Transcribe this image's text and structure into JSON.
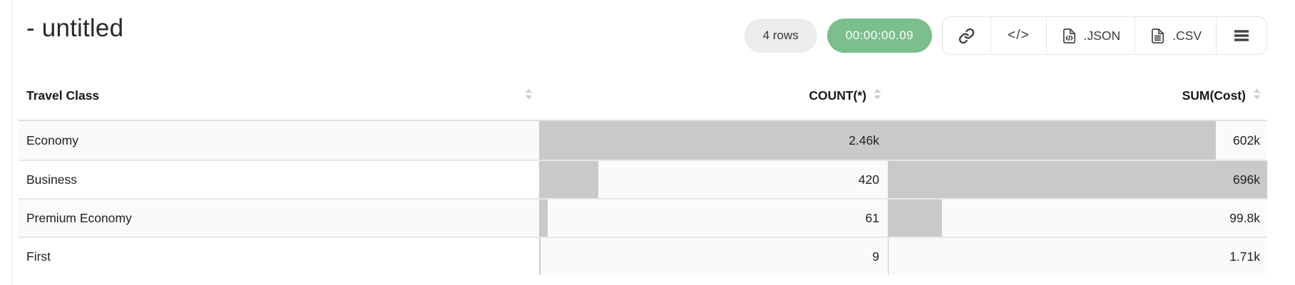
{
  "header": {
    "title": "- untitled",
    "row_count": "4 rows",
    "timer": "00:00:00.09",
    "code_icon_label": "</>",
    "json_label": ".JSON",
    "csv_label": ".CSV"
  },
  "colors": {
    "timer_bg": "#7cbe8e",
    "bar": "#c9c9c9",
    "bar_track": "#fafafa",
    "sort_icon": "#d0d0d0"
  },
  "table": {
    "columns": [
      {
        "label": "Travel Class",
        "align": "left",
        "sortable": true
      },
      {
        "label": "COUNT(*)",
        "align": "right",
        "sortable": true
      },
      {
        "label": "SUM(Cost)",
        "align": "right",
        "sortable": true
      }
    ],
    "rows": [
      {
        "travel_class": "Economy",
        "count": 2460,
        "count_display": "2.46k",
        "sum": 602000,
        "sum_display": "602k"
      },
      {
        "travel_class": "Business",
        "count": 420,
        "count_display": "420",
        "sum": 696000,
        "sum_display": "696k"
      },
      {
        "travel_class": "Premium Economy",
        "count": 61,
        "count_display": "61",
        "sum": 99800,
        "sum_display": "99.8k"
      },
      {
        "travel_class": "First",
        "count": 9,
        "count_display": "9",
        "sum": 1710,
        "sum_display": "1.71k"
      }
    ]
  }
}
